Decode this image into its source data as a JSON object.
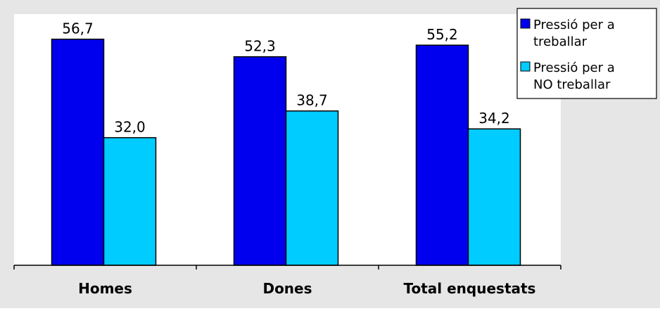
{
  "colors": {
    "outer_background": "#e6e6e6",
    "plot_background": "#ffffff",
    "series_1": "#0000ee",
    "series_2": "#00ccff",
    "border": "#000000"
  },
  "chart_data": {
    "type": "bar",
    "title": "",
    "xlabel": "",
    "ylabel": "",
    "categories": [
      "Homes",
      "Dones",
      "Total enquestats"
    ],
    "series": [
      {
        "name": "Pressió per a treballar",
        "legend_lines": [
          "Pressió per a",
          "treballar"
        ],
        "values": [
          56.7,
          52.3,
          55.2
        ],
        "labels": [
          "56,7",
          "52,3",
          "55,2"
        ]
      },
      {
        "name": "Pressió per a NO treballar",
        "legend_lines": [
          "Pressió per a",
          "NO treballar"
        ],
        "values": [
          32.0,
          38.7,
          34.2
        ],
        "labels": [
          "32,0",
          "38,7",
          "34,2"
        ]
      }
    ],
    "ylim": [
      0,
      63
    ],
    "grid": false,
    "legend_position": "top-right"
  }
}
